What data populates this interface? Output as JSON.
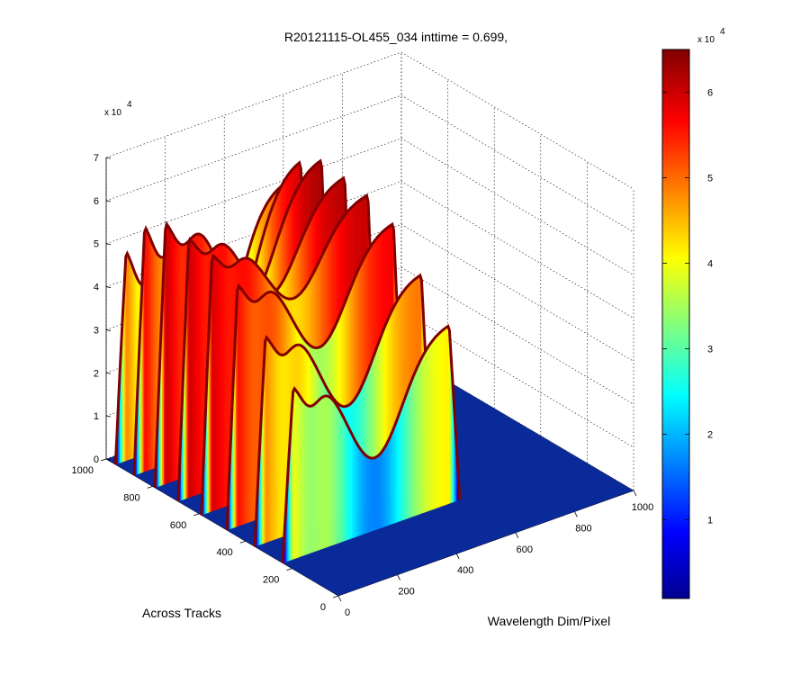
{
  "chart_data": {
    "type": "surface",
    "title": "R20121115-OL455_034 inttime = 0.699,",
    "xlabel": "Wavelength Dim/Pixel",
    "ylabel": "Across Tracks",
    "zlabel": "",
    "z_multiplier_label": "x 10",
    "z_multiplier_exp": "4",
    "colorbar_multiplier_label": "x 10",
    "colorbar_multiplier_exp": "4",
    "colormap": "jet",
    "grid": true,
    "xlim": [
      0,
      1000
    ],
    "ylim": [
      0,
      1000
    ],
    "zlim": [
      0,
      70000
    ],
    "x_ticks": [
      "0",
      "200",
      "400",
      "600",
      "800",
      "1000"
    ],
    "y_ticks": [
      "0",
      "200",
      "400",
      "600",
      "800",
      "1000"
    ],
    "z_ticks": [
      "0",
      "1",
      "2",
      "3",
      "4",
      "5",
      "6",
      "7"
    ],
    "colorbar_ticks": [
      "1",
      "2",
      "3",
      "4",
      "5",
      "6"
    ],
    "colorbar_range": [
      800,
      65000
    ],
    "colors": {
      "jet": [
        "#00008f",
        "#0000ff",
        "#00ffff",
        "#ffff00",
        "#ff0000",
        "#800000"
      ],
      "floor": "#0a2a9a",
      "grid": "#000000"
    },
    "data_extent": {
      "x_max": 600
    },
    "profiles": [
      {
        "y": 960,
        "peak": 52000,
        "dip": 0.78
      },
      {
        "y": 880,
        "peak": 60000,
        "dip": 0.62
      },
      {
        "y": 790,
        "peak": 63000,
        "dip": 0.45
      },
      {
        "y": 690,
        "peak": 62000,
        "dip": 0.35
      },
      {
        "y": 590,
        "peak": 61000,
        "dip": 0.3
      },
      {
        "y": 480,
        "peak": 58000,
        "dip": 0.4
      },
      {
        "y": 360,
        "peak": 50000,
        "dip": 0.5
      },
      {
        "y": 240,
        "peak": 42000,
        "dip": 0.6
      }
    ]
  }
}
